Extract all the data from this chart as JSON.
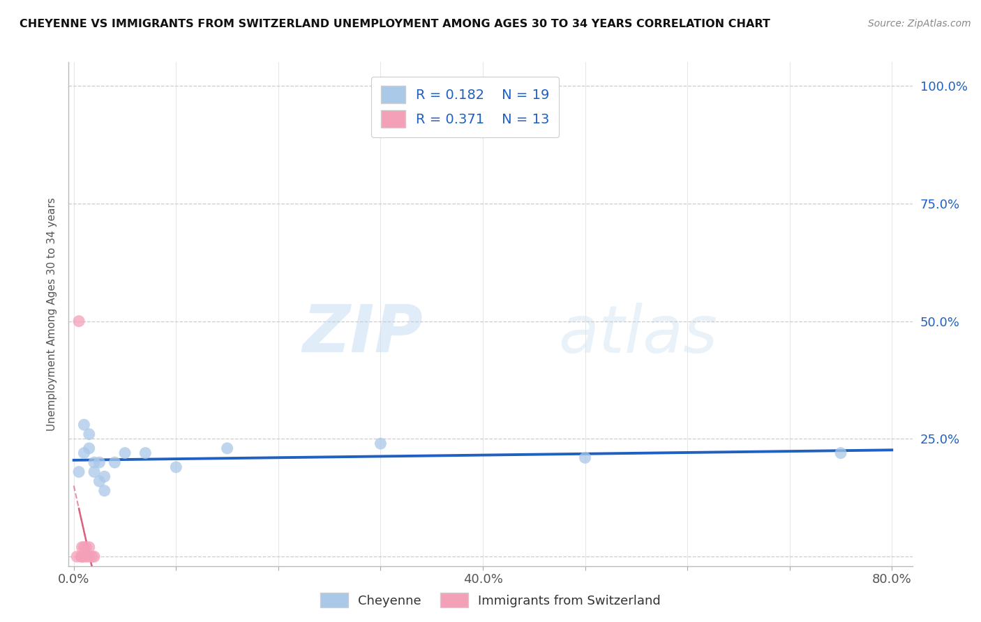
{
  "title": "CHEYENNE VS IMMIGRANTS FROM SWITZERLAND UNEMPLOYMENT AMONG AGES 30 TO 34 YEARS CORRELATION CHART",
  "source_text": "Source: ZipAtlas.com",
  "ylabel": "Unemployment Among Ages 30 to 34 years",
  "xlim": [
    -0.005,
    0.82
  ],
  "ylim": [
    -0.02,
    1.05
  ],
  "xticks": [
    0.0,
    0.1,
    0.2,
    0.3,
    0.4,
    0.5,
    0.6,
    0.7,
    0.8
  ],
  "xticklabels": [
    "0.0%",
    "",
    "",
    "",
    "40.0%",
    "",
    "",
    "",
    "80.0%"
  ],
  "yticks": [
    0.0,
    0.25,
    0.5,
    0.75,
    1.0
  ],
  "yticklabels": [
    "",
    "25.0%",
    "50.0%",
    "75.0%",
    "100.0%"
  ],
  "cheyenne_x": [
    0.005,
    0.01,
    0.01,
    0.015,
    0.015,
    0.02,
    0.02,
    0.025,
    0.025,
    0.03,
    0.03,
    0.04,
    0.05,
    0.07,
    0.1,
    0.15,
    0.3,
    0.5,
    0.75
  ],
  "cheyenne_y": [
    0.18,
    0.28,
    0.22,
    0.26,
    0.23,
    0.2,
    0.18,
    0.2,
    0.16,
    0.17,
    0.14,
    0.2,
    0.22,
    0.22,
    0.19,
    0.23,
    0.24,
    0.21,
    0.22
  ],
  "swiss_x": [
    0.003,
    0.005,
    0.007,
    0.008,
    0.008,
    0.009,
    0.01,
    0.012,
    0.012,
    0.015,
    0.015,
    0.018,
    0.02
  ],
  "swiss_y": [
    0.0,
    0.5,
    0.0,
    0.0,
    0.02,
    0.0,
    0.02,
    0.0,
    0.02,
    0.0,
    0.02,
    0.0,
    0.0
  ],
  "cheyenne_color": "#aac8e8",
  "swiss_color": "#f4a0b8",
  "blue_line_color": "#2060c0",
  "pink_line_color": "#e06080",
  "legend_R_cheyenne": "R = 0.182",
  "legend_N_cheyenne": "N = 19",
  "legend_R_swiss": "R = 0.371",
  "legend_N_swiss": "N = 13",
  "watermark_zip": "ZIP",
  "watermark_atlas": "atlas",
  "grid_color": "#cccccc",
  "background_color": "#ffffff"
}
